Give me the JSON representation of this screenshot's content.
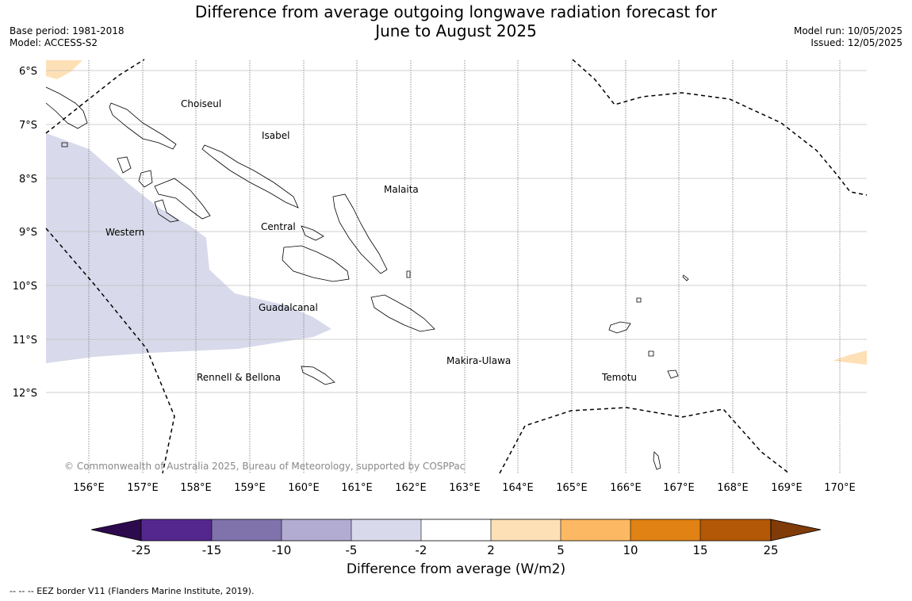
{
  "title": {
    "line1": "Difference from average outgoing longwave radiation forecast for",
    "line2": "June to August 2025"
  },
  "meta_left": {
    "base_period": "Base period: 1981-2018",
    "model": "Model: ACCESS-S2"
  },
  "meta_right": {
    "model_run": "Model run: 10/05/2025",
    "issued": "Issued: 12/05/2025"
  },
  "map": {
    "lat_labels": [
      "6°S",
      "7°S",
      "8°S",
      "9°S",
      "10°S",
      "11°S",
      "12°S"
    ],
    "lon_labels": [
      "156°E",
      "157°E",
      "158°E",
      "159°E",
      "160°E",
      "161°E",
      "162°E",
      "163°E",
      "164°E",
      "165°E",
      "166°E",
      "167°E",
      "168°E",
      "169°E",
      "170°E"
    ],
    "regions": {
      "choiseul": "Choiseul",
      "isabel": "Isabel",
      "malaita": "Malaita",
      "western": "Western",
      "central": "Central",
      "guadalcanal": "Guadalcanal",
      "makira": "Makira-Ulawa",
      "rennell": "Rennell & Bellona",
      "temotu": "Temotu"
    },
    "copyright": "© Commonwealth of Australia 2025, Bureau of Meteorology, supported by COSPPac"
  },
  "colorbar": {
    "ticks": [
      "-25",
      "-15",
      "-10",
      "-5",
      "-2",
      "2",
      "5",
      "10",
      "15",
      "25"
    ],
    "colors": {
      "below_min": "#2d0a4e",
      "c1": "#54278f",
      "c2": "#8073ac",
      "c3": "#b2abd2",
      "c4": "#d8daeb",
      "c5": "#ffffff",
      "c6": "#fee0b6",
      "c7": "#fdb863",
      "c8": "#e08214",
      "c9": "#b35806",
      "above_max": "#7f3b08"
    },
    "label": "Difference from average (W/m2)"
  },
  "footer_note": "--  --  -- EEZ border V11 (Flanders Marine Institute, 2019)."
}
